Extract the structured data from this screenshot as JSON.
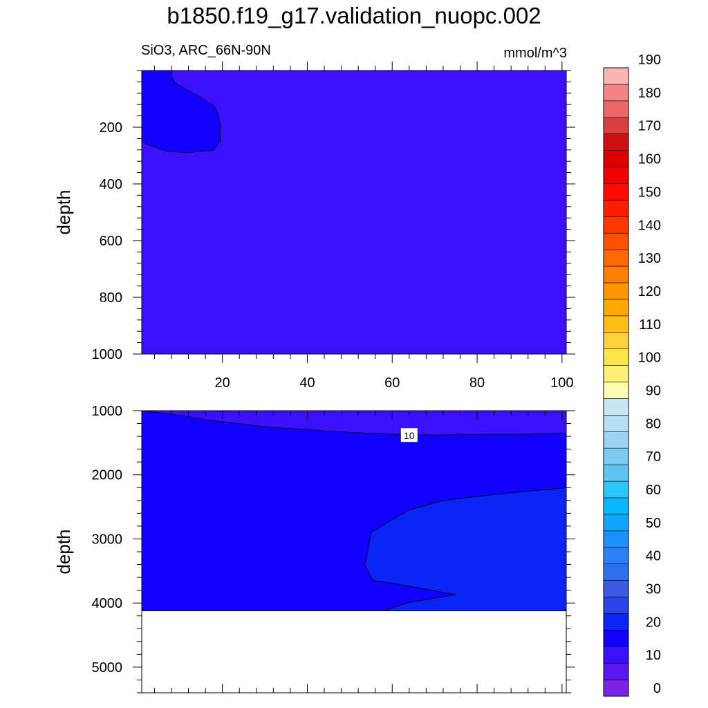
{
  "title": "b1850.f19_g17.validation_nuopc.002",
  "subtitle_left": "SiO3, ARC_66N-90N",
  "subtitle_right": "mmol/m^3",
  "chart_data": [
    {
      "type": "contour",
      "panel": "upper",
      "ylabel": "depth",
      "xlabel": "",
      "x_ticks": [
        20,
        40,
        60,
        80,
        100
      ],
      "y_ticks": [
        200,
        400,
        600,
        800,
        1000
      ],
      "xlim": [
        1,
        101
      ],
      "ylim": [
        1000,
        0
      ],
      "fill_color": "#3a10ff",
      "regions": [
        {
          "level_range": [
            0,
            5
          ],
          "color": "#1100ff",
          "boundary": [
            [
              1,
              0
            ],
            [
              8,
              0
            ],
            [
              8,
              25
            ],
            [
              9,
              45
            ],
            [
              12,
              70
            ],
            [
              16,
              105
            ],
            [
              18,
              125
            ],
            [
              19,
              150
            ],
            [
              19.5,
              195
            ],
            [
              19.5,
              250
            ],
            [
              18.5,
              270
            ],
            [
              18,
              280
            ],
            [
              12,
              290
            ],
            [
              7,
              285
            ],
            [
              3,
              265
            ],
            [
              1,
              250
            ]
          ]
        }
      ]
    },
    {
      "type": "contour",
      "panel": "lower",
      "ylabel": "depth",
      "xlabel": "",
      "x_ticks": [
        20,
        40,
        60,
        80,
        100
      ],
      "y_ticks": [
        1000,
        2000,
        3000,
        4000,
        5000
      ],
      "xlim": [
        1,
        101
      ],
      "ylim": [
        5400,
        1000
      ],
      "bottom_depth": 4120,
      "fill_color": "#3a10ff",
      "line_label": "10",
      "regions": [
        {
          "level_range": [
            5,
            10
          ],
          "color": "#1100ff",
          "boundary": [
            [
              1,
              1000
            ],
            [
              5,
              1030
            ],
            [
              11,
              1080
            ],
            [
              16,
              1140
            ],
            [
              30,
              1250
            ],
            [
              45,
              1320
            ],
            [
              60,
              1370
            ],
            [
              70,
              1380
            ],
            [
              80,
              1370
            ],
            [
              90,
              1370
            ],
            [
              101,
              1350
            ],
            [
              101,
              4120
            ],
            [
              1,
              4120
            ]
          ]
        },
        {
          "level_range": [
            10,
            15
          ],
          "color": "#0a25f5",
          "boundary": [
            [
              101,
              2200
            ],
            [
              85,
              2300
            ],
            [
              72,
              2400
            ],
            [
              64,
              2550
            ],
            [
              60,
              2700
            ],
            [
              55,
              2900
            ],
            [
              54.5,
              3100
            ],
            [
              54,
              3300
            ],
            [
              53.5,
              3400
            ],
            [
              55.5,
              3650
            ],
            [
              61,
              3700
            ],
            [
              75,
              3870
            ],
            [
              64,
              3990
            ],
            [
              59,
              4100
            ],
            [
              58,
              4120
            ],
            [
              101,
              4120
            ]
          ]
        }
      ]
    }
  ],
  "colorbar": {
    "levels": [
      0,
      5,
      10,
      15,
      20,
      25,
      30,
      35,
      40,
      45,
      50,
      55,
      60,
      65,
      70,
      75,
      80,
      85,
      90,
      95,
      100,
      105,
      110,
      115,
      120,
      125,
      130,
      135,
      140,
      145,
      150,
      155,
      160,
      165,
      170,
      175,
      180,
      185,
      190
    ],
    "tick_labels": [
      "0",
      "10",
      "20",
      "30",
      "40",
      "50",
      "60",
      "70",
      "80",
      "90",
      "100",
      "110",
      "120",
      "130",
      "140",
      "150",
      "160",
      "170",
      "180",
      "190"
    ],
    "colors": [
      "#7b22e8",
      "#5a18f0",
      "#3a10ff",
      "#1100ff",
      "#0a25f5",
      "#2a44e8",
      "#3a5ae0",
      "#2e6fee",
      "#2a82f6",
      "#1a8ffe",
      "#0ea6ff",
      "#08b8ff",
      "#2cc6fb",
      "#5ec5f2",
      "#7ecbf2",
      "#9bd4f3",
      "#b5e0f4",
      "#c8e6f4",
      "#fffdb0",
      "#fff176",
      "#ffe44a",
      "#ffd23c",
      "#ffbd18",
      "#ffa800",
      "#ff9600",
      "#ff8000",
      "#ff6800",
      "#ff5000",
      "#ff3600",
      "#ff1e00",
      "#ff0a00",
      "#f00000",
      "#dc0000",
      "#cc1010",
      "#d84040",
      "#ec6868",
      "#f48484",
      "#fbb4b4"
    ]
  }
}
